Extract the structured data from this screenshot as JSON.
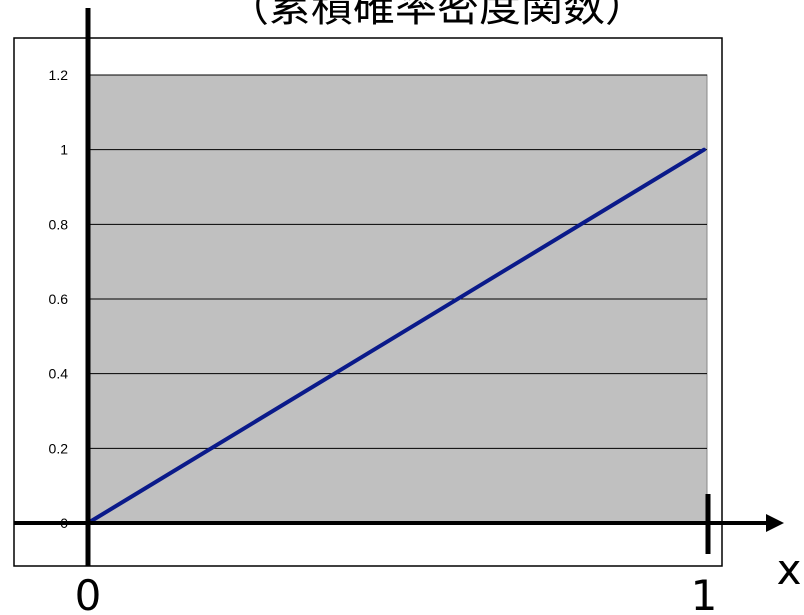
{
  "chart_data": {
    "type": "line",
    "title": "（累積確率密度関数）",
    "xlabel": "x",
    "ylabel": "",
    "x_tick_labels": [
      "0",
      "1"
    ],
    "y_tick_labels": [
      "0",
      "0.2",
      "0.4",
      "0.6",
      "0.8",
      "1",
      "1.2"
    ],
    "y_ticks": [
      0,
      0.2,
      0.4,
      0.6,
      0.8,
      1,
      1.2
    ],
    "xlim": [
      0,
      1
    ],
    "ylim": [
      0,
      1.2
    ],
    "grid": true,
    "series": [
      {
        "x": [
          0,
          1
        ],
        "values": [
          0,
          1
        ]
      }
    ]
  },
  "colors": {
    "plot_background": "#c0c0c0",
    "line": "#0a1a8a",
    "axis": "#000000",
    "gridline": "#000000"
  }
}
